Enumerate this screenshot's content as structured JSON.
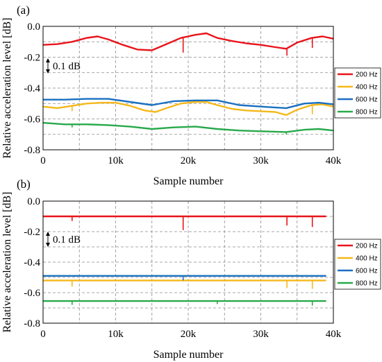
{
  "chart_data": [
    {
      "type": "line",
      "panel_label": "(a)",
      "xlabel": "Sample number",
      "ylabel": "Relative acceleration level [dB]",
      "xlim": [
        0,
        40000
      ],
      "ylim": [
        -0.8,
        0.0
      ],
      "x_ticks": [
        0,
        10000,
        20000,
        30000,
        40000
      ],
      "x_tick_labels": [
        "0",
        "10k",
        "20k",
        "30k",
        "40k"
      ],
      "y_ticks": [
        0.0,
        -0.2,
        -0.4,
        -0.6,
        -0.8
      ],
      "y_tick_labels": [
        "0.0",
        "-0.2",
        "-0.4",
        "-0.6",
        "-0.8"
      ],
      "grid": true,
      "legend_position": "right",
      "annotation": "0.1 dB",
      "series": [
        {
          "name": "200 Hz",
          "color": "#e8141a",
          "x": [
            0,
            2000,
            4000,
            6000,
            7500,
            9000,
            11000,
            13000,
            15000,
            17000,
            19000,
            21000,
            22500,
            24000,
            26000,
            28000,
            30000,
            32000,
            33500,
            35000,
            37000,
            38500,
            40000
          ],
          "values": [
            -0.12,
            -0.115,
            -0.1,
            -0.075,
            -0.065,
            -0.085,
            -0.12,
            -0.15,
            -0.155,
            -0.115,
            -0.075,
            -0.055,
            -0.045,
            -0.075,
            -0.095,
            -0.11,
            -0.12,
            -0.135,
            -0.145,
            -0.105,
            -0.075,
            -0.065,
            -0.08
          ],
          "spikes": [
            {
              "x": 19300,
              "value": -0.17
            },
            {
              "x": 33600,
              "value": -0.19
            },
            {
              "x": 37100,
              "value": -0.14
            }
          ]
        },
        {
          "name": "400 Hz",
          "color": "#f5b81a",
          "x": [
            0,
            2000,
            4000,
            6000,
            8000,
            10000,
            12000,
            14000,
            15500,
            17000,
            19000,
            21000,
            22500,
            24000,
            26000,
            28000,
            30000,
            32000,
            33500,
            35000,
            37000,
            38500,
            40000
          ],
          "values": [
            -0.52,
            -0.53,
            -0.515,
            -0.5,
            -0.495,
            -0.495,
            -0.515,
            -0.545,
            -0.555,
            -0.53,
            -0.5,
            -0.49,
            -0.49,
            -0.51,
            -0.535,
            -0.545,
            -0.55,
            -0.555,
            -0.575,
            -0.54,
            -0.51,
            -0.505,
            -0.52
          ],
          "spikes": [
            {
              "x": 4000,
              "value": -0.55
            },
            {
              "x": 37100,
              "value": -0.57
            }
          ]
        },
        {
          "name": "600 Hz",
          "color": "#1a6fc0",
          "x": [
            0,
            3000,
            6000,
            9000,
            12000,
            15000,
            18000,
            21000,
            24000,
            27000,
            30000,
            33500,
            36000,
            38000,
            40000
          ],
          "values": [
            -0.475,
            -0.475,
            -0.47,
            -0.47,
            -0.49,
            -0.51,
            -0.485,
            -0.48,
            -0.48,
            -0.51,
            -0.52,
            -0.53,
            -0.5,
            -0.495,
            -0.505
          ],
          "spikes": []
        },
        {
          "name": "800 Hz",
          "color": "#27a94a",
          "x": [
            0,
            3000,
            6000,
            9000,
            12000,
            15000,
            18000,
            21000,
            24000,
            27000,
            30000,
            33500,
            36000,
            38000,
            40000
          ],
          "values": [
            -0.625,
            -0.635,
            -0.635,
            -0.64,
            -0.65,
            -0.665,
            -0.655,
            -0.65,
            -0.665,
            -0.675,
            -0.68,
            -0.685,
            -0.67,
            -0.665,
            -0.675
          ],
          "spikes": [
            {
              "x": 4000,
              "value": -0.655
            },
            {
              "x": 33500,
              "value": -0.7
            }
          ]
        }
      ]
    },
    {
      "type": "line",
      "panel_label": "(b)",
      "xlabel": "Sample number",
      "ylabel": "Relative acceleration level [dB]",
      "xlim": [
        0,
        40000
      ],
      "ylim": [
        -0.8,
        0.0
      ],
      "x_ticks": [
        0,
        10000,
        20000,
        30000,
        40000
      ],
      "x_tick_labels": [
        "0",
        "10k",
        "20k",
        "30k",
        "40k"
      ],
      "y_ticks": [
        0.0,
        -0.2,
        -0.4,
        -0.6,
        -0.8
      ],
      "y_tick_labels": [
        "0.0",
        "-0.2",
        "-0.4",
        "-0.6",
        "-0.8"
      ],
      "grid": true,
      "legend_position": "right",
      "annotation": "0.1 dB",
      "series": [
        {
          "name": "200 Hz",
          "color": "#e8141a",
          "x": [
            0,
            39000
          ],
          "values": [
            -0.1,
            -0.1
          ],
          "spikes": [
            {
              "x": 4000,
              "value": -0.13
            },
            {
              "x": 19300,
              "value": -0.19
            },
            {
              "x": 33600,
              "value": -0.16
            },
            {
              "x": 37100,
              "value": -0.17
            }
          ]
        },
        {
          "name": "400 Hz",
          "color": "#f5b81a",
          "x": [
            0,
            39000
          ],
          "values": [
            -0.52,
            -0.52
          ],
          "spikes": [
            {
              "x": 4000,
              "value": -0.56
            },
            {
              "x": 33600,
              "value": -0.57
            },
            {
              "x": 37100,
              "value": -0.575
            }
          ]
        },
        {
          "name": "600 Hz",
          "color": "#1a6fc0",
          "x": [
            0,
            39000
          ],
          "values": [
            -0.49,
            -0.49
          ],
          "spikes": [
            {
              "x": 19300,
              "value": -0.52
            }
          ]
        },
        {
          "name": "800 Hz",
          "color": "#27a94a",
          "x": [
            0,
            39000
          ],
          "values": [
            -0.655,
            -0.655
          ],
          "spikes": [
            {
              "x": 4000,
              "value": -0.68
            },
            {
              "x": 24000,
              "value": -0.675
            },
            {
              "x": 37100,
              "value": -0.685
            }
          ]
        }
      ]
    }
  ]
}
